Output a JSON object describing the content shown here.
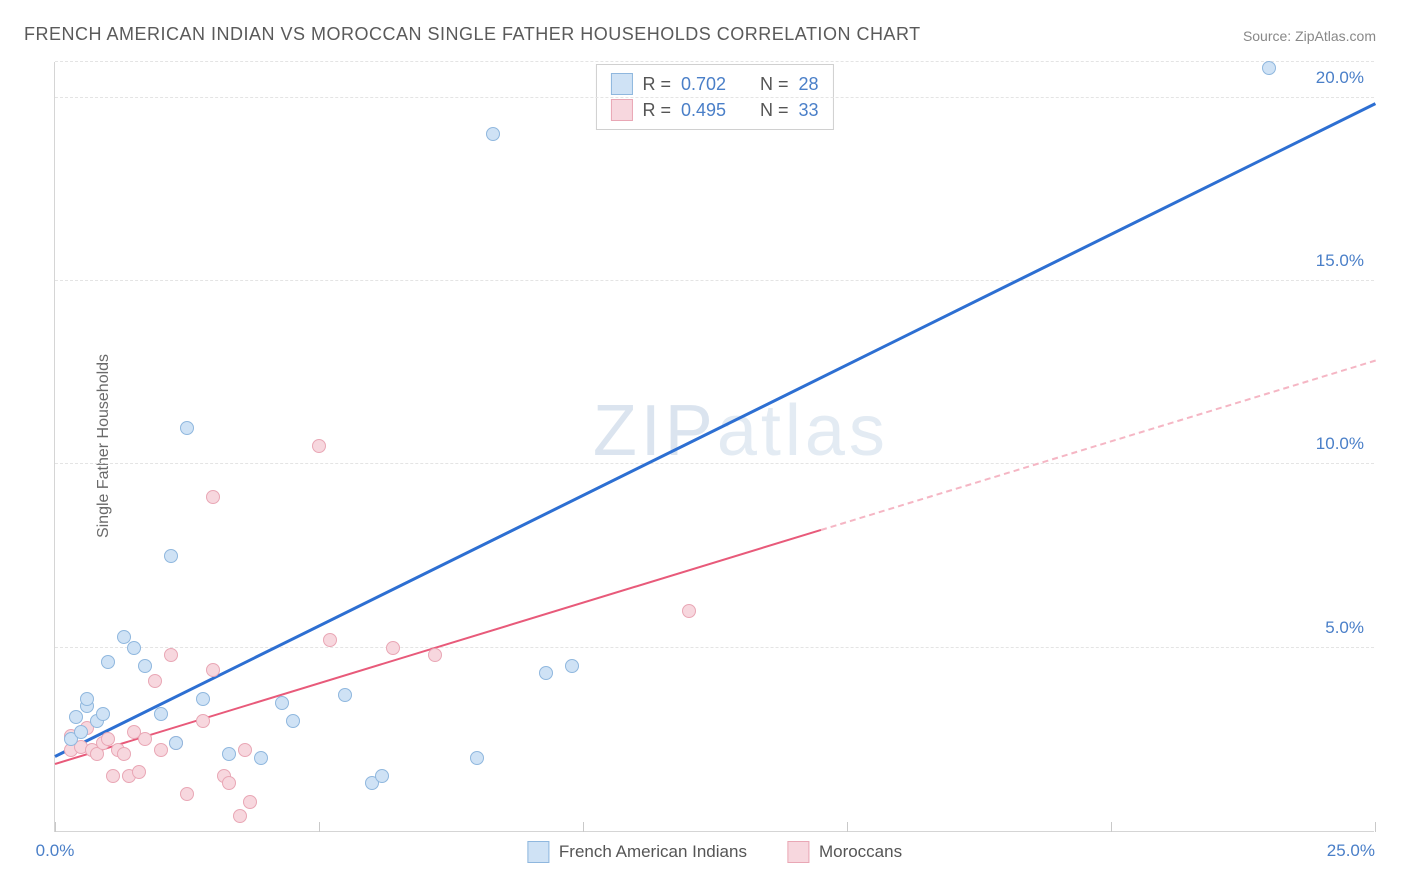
{
  "title": "FRENCH AMERICAN INDIAN VS MOROCCAN SINGLE FATHER HOUSEHOLDS CORRELATION CHART",
  "source": "Source: ZipAtlas.com",
  "ylabel": "Single Father Households",
  "watermark_bold": "ZIP",
  "watermark_thin": "atlas",
  "chart": {
    "type": "scatter",
    "xlim": [
      0,
      25
    ],
    "ylim": [
      0,
      21
    ],
    "xticks": [
      0,
      5,
      10,
      15,
      20,
      25
    ],
    "xtick_labels": {
      "0": "0.0%",
      "25": "25.0%"
    },
    "yticks": [
      5,
      10,
      15,
      20
    ],
    "ytick_labels": [
      "5.0%",
      "10.0%",
      "15.0%",
      "20.0%"
    ],
    "grid_dash_color": "#e4e4e4",
    "axis_color": "#d5d5d5",
    "series": [
      {
        "name": "French American Indians",
        "marker_fill": "#cfe2f5",
        "marker_stroke": "#8fb7de",
        "marker_size": 14,
        "trend_color": "#2d6fd2",
        "r": "0.702",
        "n": "28",
        "trend": {
          "x0": 0,
          "y0": 2.0,
          "x1": 25,
          "y1": 19.8,
          "solid_to_x": 25
        },
        "points": [
          [
            0.3,
            2.5
          ],
          [
            0.4,
            3.1
          ],
          [
            0.5,
            2.7
          ],
          [
            0.6,
            3.4
          ],
          [
            0.8,
            3.0
          ],
          [
            0.9,
            3.2
          ],
          [
            1.0,
            4.6
          ],
          [
            1.3,
            5.3
          ],
          [
            1.5,
            5.0
          ],
          [
            1.7,
            4.5
          ],
          [
            2.0,
            3.2
          ],
          [
            2.2,
            7.5
          ],
          [
            2.3,
            2.4
          ],
          [
            2.5,
            11.0
          ],
          [
            2.8,
            3.6
          ],
          [
            3.3,
            2.1
          ],
          [
            3.9,
            2.0
          ],
          [
            4.3,
            3.5
          ],
          [
            4.5,
            3.0
          ],
          [
            5.5,
            3.7
          ],
          [
            6.0,
            1.3
          ],
          [
            6.2,
            1.5
          ],
          [
            8.0,
            2.0
          ],
          [
            8.3,
            19.0
          ],
          [
            9.3,
            4.3
          ],
          [
            9.8,
            4.5
          ],
          [
            23.0,
            20.8
          ],
          [
            0.6,
            3.6
          ]
        ]
      },
      {
        "name": "Moroccans",
        "marker_fill": "#f7d7de",
        "marker_stroke": "#e9a7b5",
        "marker_size": 14,
        "trend_color": "#e85a7a",
        "trend_dash_color": "#f5b6c4",
        "r": "0.495",
        "n": "33",
        "trend": {
          "x0": 0,
          "y0": 1.8,
          "x1": 25,
          "y1": 12.8,
          "solid_to_x": 14.5
        },
        "points": [
          [
            0.3,
            2.2
          ],
          [
            0.3,
            2.6
          ],
          [
            0.5,
            2.3
          ],
          [
            0.6,
            2.8
          ],
          [
            0.7,
            2.2
          ],
          [
            0.8,
            2.1
          ],
          [
            0.9,
            2.4
          ],
          [
            1.0,
            2.5
          ],
          [
            1.1,
            1.5
          ],
          [
            1.2,
            2.2
          ],
          [
            1.3,
            2.1
          ],
          [
            1.4,
            1.5
          ],
          [
            1.5,
            2.7
          ],
          [
            1.6,
            1.6
          ],
          [
            1.7,
            2.5
          ],
          [
            1.9,
            4.1
          ],
          [
            2.0,
            2.2
          ],
          [
            2.2,
            4.8
          ],
          [
            2.3,
            2.4
          ],
          [
            2.5,
            1.0
          ],
          [
            2.8,
            3.0
          ],
          [
            3.0,
            9.1
          ],
          [
            3.0,
            4.4
          ],
          [
            3.2,
            1.5
          ],
          [
            3.3,
            1.3
          ],
          [
            3.5,
            0.4
          ],
          [
            3.6,
            2.2
          ],
          [
            3.7,
            0.8
          ],
          [
            5.0,
            10.5
          ],
          [
            5.2,
            5.2
          ],
          [
            6.4,
            5.0
          ],
          [
            7.2,
            4.8
          ],
          [
            12.0,
            6.0
          ]
        ]
      }
    ]
  },
  "legend": {
    "series1_label": "French American Indians",
    "series2_label": "Moroccans"
  }
}
